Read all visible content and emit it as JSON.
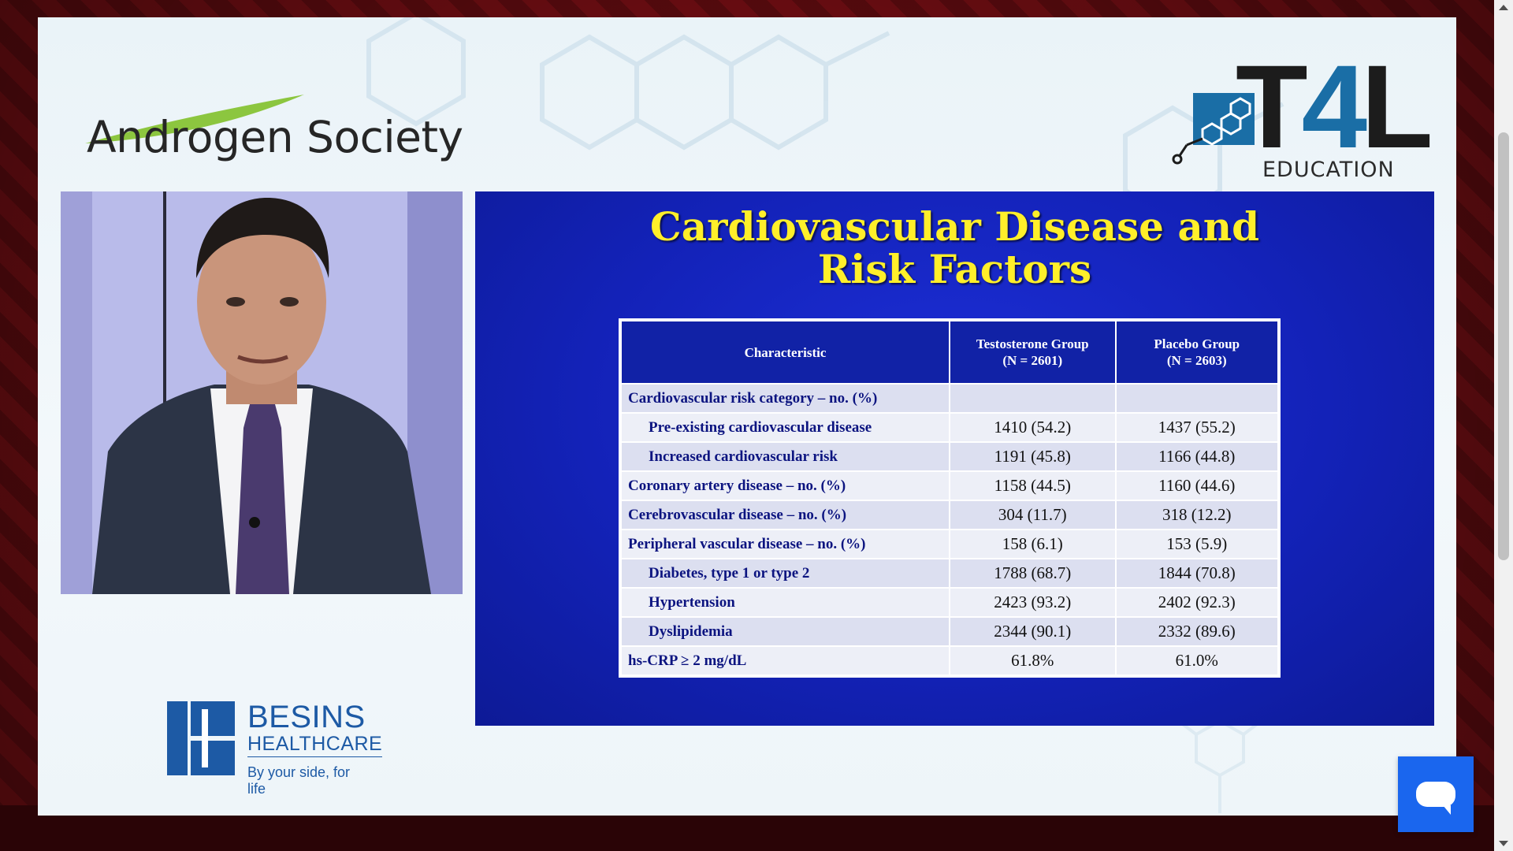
{
  "brand": {
    "androgen_society": "Androgen Society",
    "t4l_t": "T",
    "t4l_4": "4",
    "t4l_l": "L",
    "t4l_education": "EDUCATION",
    "besins_name": "BESINS",
    "besins_sub": "HEALTHCARE",
    "besins_tagline": "By your side, for life"
  },
  "slide": {
    "title_line1": "Cardiovascular Disease and",
    "title_line2": "Risk Factors",
    "headers": [
      "Characteristic",
      "Testosterone Group",
      "(N = 2601)",
      "Placebo Group",
      "(N = 2603)"
    ],
    "rows": [
      {
        "label": "Cardiovascular risk category – no. (%)",
        "t": "",
        "p": "",
        "indent": false
      },
      {
        "label": "Pre-existing cardiovascular disease",
        "t": "1410 (54.2)",
        "p": "1437 (55.2)",
        "indent": true
      },
      {
        "label": "Increased cardiovascular risk",
        "t": "1191 (45.8)",
        "p": "1166 (44.8)",
        "indent": true
      },
      {
        "label": "Coronary artery disease – no. (%)",
        "t": "1158 (44.5)",
        "p": "1160 (44.6)",
        "indent": false
      },
      {
        "label": "Cerebrovascular disease – no. (%)",
        "t": "304 (11.7)",
        "p": "318 (12.2)",
        "indent": false
      },
      {
        "label": "Peripheral vascular disease – no. (%)",
        "t": "158 (6.1)",
        "p": "153 (5.9)",
        "indent": false
      },
      {
        "label": "Diabetes, type 1 or type 2",
        "t": "1788 (68.7)",
        "p": "1844 (70.8)",
        "indent": true
      },
      {
        "label": "Hypertension",
        "t": "2423 (93.2)",
        "p": "2402 (92.3)",
        "indent": true
      },
      {
        "label": "Dyslipidemia",
        "t": "2344 (90.1)",
        "p": "2332 (89.6)",
        "indent": true
      },
      {
        "label": "hs-CRP ≥ 2 mg/dL",
        "t": "61.8%",
        "p": "61.0%",
        "indent": false
      }
    ]
  },
  "icons": {
    "chat": "chat-icon",
    "scroll_up": "chevron-up-icon",
    "scroll_down": "chevron-down-icon"
  },
  "colors": {
    "slide_bg": "#1322b8",
    "title_yellow": "#ffef2a",
    "header_blue": "#1122a6",
    "chat_blue": "#1a66ee",
    "besins_blue": "#1d5aa5"
  }
}
